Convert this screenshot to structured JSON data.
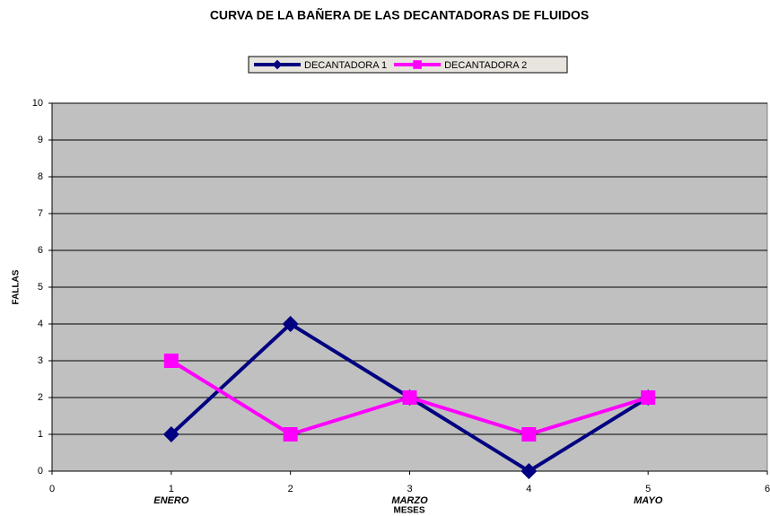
{
  "chart_data": {
    "type": "line",
    "title": "CURVA DE LA BAÑERA DE LAS DECANTADORAS DE FLUIDOS",
    "x_label": "MESES",
    "y_label": "FALLAS",
    "x": [
      1,
      2,
      3,
      4,
      5
    ],
    "series": [
      {
        "name": "DECANTADORA 1",
        "color": "#000080",
        "marker": "diamond",
        "values": [
          1,
          4,
          2,
          0,
          2
        ]
      },
      {
        "name": "DECANTADORA 2",
        "color": "#ff00ff",
        "marker": "square",
        "values": [
          3,
          1,
          2,
          1,
          2
        ]
      }
    ],
    "annotations": [
      {
        "x": 1,
        "text": "ENERO"
      },
      {
        "x": 3,
        "text": "MARZO"
      },
      {
        "x": 5,
        "text": "MAYO"
      }
    ],
    "xlim": [
      0,
      6
    ],
    "xticks": [
      0,
      1,
      2,
      3,
      4,
      5,
      6
    ],
    "ylim": [
      0,
      10
    ],
    "yticks": [
      0,
      1,
      2,
      3,
      4,
      5,
      6,
      7,
      8,
      9,
      10
    ],
    "grid": true,
    "legend": "top",
    "plot_background": "#c0c0c0"
  }
}
